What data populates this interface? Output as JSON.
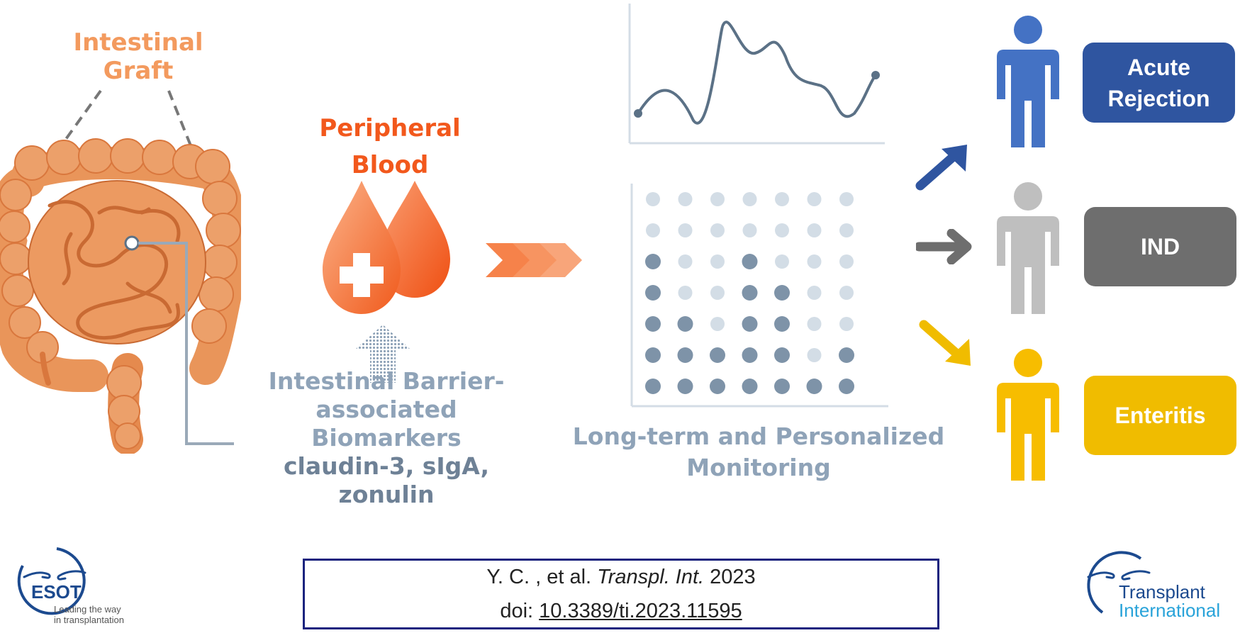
{
  "graft": {
    "title_line1": "Intestinal",
    "title_line2": "Graft"
  },
  "blood": {
    "title_line1": "Peripheral",
    "title_line2": "Blood"
  },
  "biomarkers": {
    "line1": "Intestinal Barrier-",
    "line2": "associated",
    "line3": "Biomarkers",
    "line4": "claudin-3, sIgA,",
    "line5": "zonulin"
  },
  "monitoring": {
    "line1": "Long-term and Personalized",
    "line2": "Monitoring"
  },
  "outcomes": [
    {
      "line1": "Acute",
      "line2": "Rejection",
      "color": "#2f55a0"
    },
    {
      "line1": "IND",
      "line2": "",
      "color": "#6e6e6e"
    },
    {
      "line1": "Enteritis",
      "line2": "",
      "color": "#f0bc00"
    }
  ],
  "citation": {
    "authors": "Y. C. , et al.",
    "journal": "Transpl. Int.",
    "year": "2023",
    "doi_label": "doi:",
    "doi": "10.3389/ti.2023.11595"
  },
  "logos": {
    "esot_name": "ESOT",
    "esot_tagline1": "Leading the way",
    "esot_tagline2": "in transplantation",
    "ti_line1": "Transplant",
    "ti_line2": "International"
  },
  "colors": {
    "orange": "#f39a5e",
    "red_orange": "#f2581c",
    "slate": "#5b7186",
    "grey_text": "#8fa3b8",
    "blue_person": "#4472c4",
    "grey_person": "#bfbfbf",
    "yellow_person": "#f7bd00"
  },
  "icons": [
    "intestine-icon",
    "blood-drop-icon",
    "chevron-arrows-icon",
    "person-icon",
    "arrow-icon",
    "hand-logo-icon"
  ]
}
